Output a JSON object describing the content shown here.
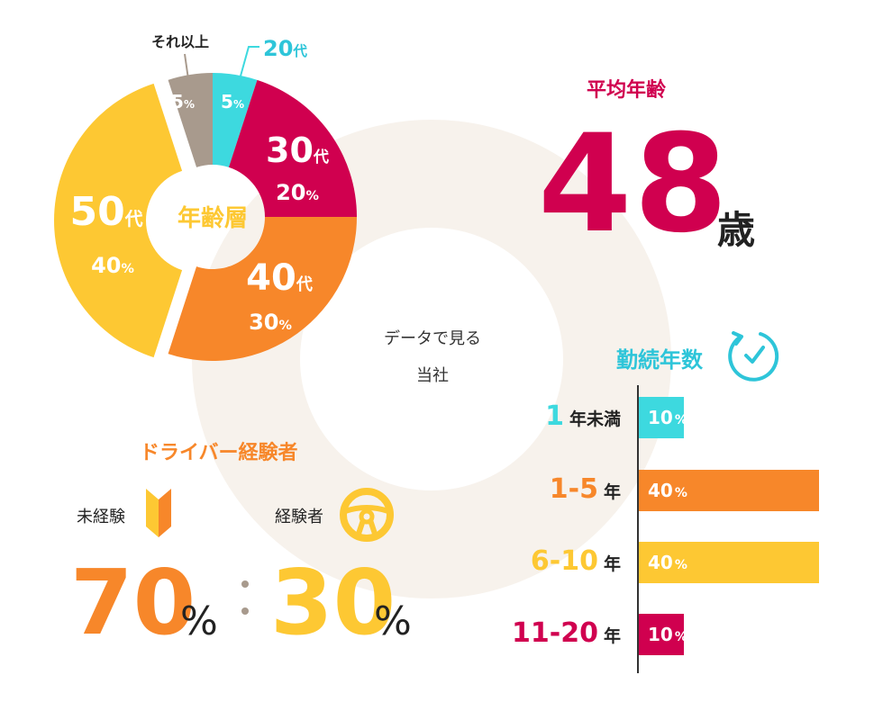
{
  "center": {
    "line1": "データで見る",
    "line2": "当社"
  },
  "avg_age": {
    "title": "平均年齢",
    "value": "48",
    "unit": "歳"
  },
  "tenure": {
    "title": "勤続年数",
    "icon": "clock-icon"
  },
  "driver": {
    "title": "ドライバー経験者",
    "novice_label": "未経験",
    "novice_icon": "beginner-mark-icon",
    "exp_label": "経験者",
    "exp_icon": "steering-wheel-icon",
    "novice_value": "70",
    "exp_value": "30",
    "unit": "%",
    "separator": ":"
  },
  "colors": {
    "cyan": "#3dd9df",
    "magenta": "#d0004f",
    "orange": "#f7872a",
    "yellow": "#fdc833",
    "taupe": "#a89a8d",
    "ring": "#f7f2ec"
  },
  "chart_data": [
    {
      "type": "pie",
      "title": "年齢層",
      "categories": [
        "20代",
        "30代",
        "40代",
        "50代",
        "それ以上"
      ],
      "slices": [
        {
          "label": "20代",
          "value": 5,
          "display": "5",
          "color": "#3dd9df"
        },
        {
          "label": "30代",
          "value": 20,
          "display": "20",
          "color": "#d0004f"
        },
        {
          "label": "40代",
          "value": 30,
          "display": "30",
          "color": "#f7872a"
        },
        {
          "label": "50代",
          "value": 40,
          "display": "40",
          "color": "#fdc833"
        },
        {
          "label": "それ以上",
          "value": 5,
          "display": "5",
          "color": "#a89a8d"
        }
      ],
      "unit": "%"
    },
    {
      "type": "bar",
      "title": "勤続年数",
      "orientation": "horizontal",
      "categories": [
        "1",
        "1-5",
        "6-10",
        "11-20"
      ],
      "category_units": [
        "年未満",
        "年",
        "年",
        "年"
      ],
      "values": [
        10,
        40,
        40,
        10
      ],
      "value_labels": [
        "10",
        "40",
        "40",
        "10"
      ],
      "unit": "%",
      "colors": [
        "#3dd9df",
        "#f7872a",
        "#fdc833",
        "#d0004f"
      ]
    }
  ]
}
